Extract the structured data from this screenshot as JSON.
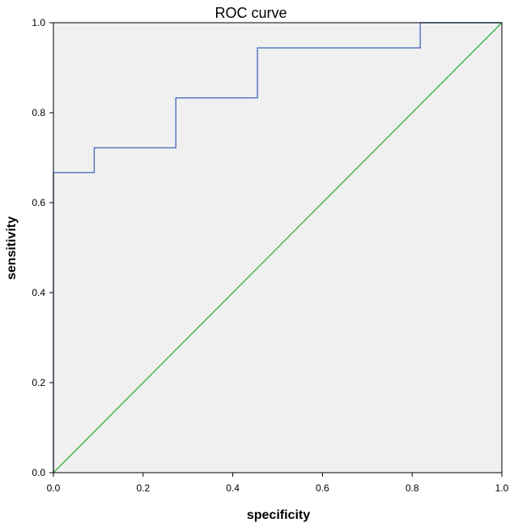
{
  "chart_data": {
    "type": "line",
    "title": "ROC curve",
    "xlabel": "specificity",
    "ylabel": "sensitivity",
    "xlim": [
      0,
      1
    ],
    "ylim": [
      0,
      1
    ],
    "xticks": [
      "0.0",
      "0.2",
      "0.4",
      "0.6",
      "0.8",
      "1.0"
    ],
    "yticks": [
      "0.0",
      "0.2",
      "0.4",
      "0.6",
      "0.8",
      "1.0"
    ],
    "grid": false,
    "legend": "none",
    "series": [
      {
        "color": "#4a6fc0",
        "step": true,
        "x": [
          0.0,
          0.0,
          0.091,
          0.091,
          0.273,
          0.273,
          0.455,
          0.455,
          0.818,
          0.818,
          1.0
        ],
        "y": [
          0.0,
          0.667,
          0.667,
          0.722,
          0.722,
          0.833,
          0.833,
          0.944,
          0.944,
          1.0,
          1.0
        ]
      },
      {
        "color": "#3cb34a",
        "x": [
          0.0,
          1.0
        ],
        "y": [
          0.0,
          1.0
        ]
      }
    ],
    "plot_background": "#f0f0f0"
  }
}
